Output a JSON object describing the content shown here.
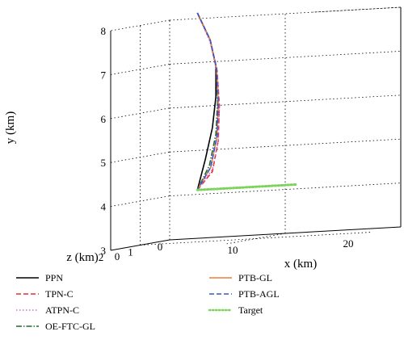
{
  "chart_data": {
    "type": "line",
    "title": "",
    "projection": "3d",
    "grid": "on",
    "xlabel": "x (km)",
    "ylabel": "y (km)",
    "zlabel": "z (km)",
    "xlim": [
      0,
      20
    ],
    "ylim": [
      3,
      8
    ],
    "zlim": [
      0,
      2
    ],
    "xticks": [
      "0",
      "10",
      "20"
    ],
    "yticks": [
      "3",
      "4",
      "5",
      "6",
      "7",
      "8"
    ],
    "zticks": [
      "0",
      "1",
      "2"
    ],
    "legend_placement": "bottom",
    "series": [
      {
        "name": "PPN",
        "color": "#000000",
        "dash": "solid",
        "x": [
          2.4,
          3.5,
          4.0,
          4.0,
          3.7,
          3.1,
          2.4
        ],
        "y": [
          8.13,
          7.5,
          6.9,
          6.2,
          5.5,
          4.8,
          4.1
        ],
        "z": [
          0,
          0,
          0,
          0,
          0,
          0,
          0
        ]
      },
      {
        "name": "TPN-C",
        "color": "#e0302e",
        "dash": "dashed",
        "x": [
          2.4,
          3.5,
          4.1,
          4.3,
          4.2,
          3.7,
          2.4
        ],
        "y": [
          8.13,
          7.5,
          6.8,
          6.0,
          5.2,
          4.5,
          4.1
        ],
        "z": [
          0,
          0,
          0,
          0,
          0,
          0,
          0
        ]
      },
      {
        "name": "ATPN-C",
        "color": "#d26ed2",
        "dash": "dotted",
        "x": [
          2.4,
          3.5,
          4.1,
          4.3,
          4.2,
          3.7,
          2.4
        ],
        "y": [
          8.13,
          7.45,
          6.75,
          5.95,
          5.2,
          4.55,
          4.1
        ],
        "z": [
          0,
          0,
          0,
          0,
          0,
          0,
          0
        ]
      },
      {
        "name": "OE-FTC-GL",
        "color": "#1c6b2e",
        "dash": "dashdot",
        "x": [
          2.4,
          3.5,
          4.05,
          4.15,
          4.0,
          3.45,
          2.4
        ],
        "y": [
          8.13,
          7.5,
          6.85,
          6.1,
          5.35,
          4.65,
          4.1
        ],
        "z": [
          0,
          0,
          0,
          0,
          0,
          0,
          0
        ]
      },
      {
        "name": "PTB-GL",
        "color": "#ef7b3c",
        "dash": "solid",
        "x": [
          2.4,
          3.5,
          4.05,
          4.2,
          4.1,
          3.55,
          2.4
        ],
        "y": [
          8.13,
          7.5,
          6.85,
          6.05,
          5.3,
          4.6,
          4.1
        ],
        "z": [
          0,
          0,
          0,
          0,
          0,
          0,
          0
        ]
      },
      {
        "name": "PTB-AGL",
        "color": "#3a55c9",
        "dash": "dashed",
        "x": [
          2.4,
          3.5,
          4.05,
          4.2,
          4.1,
          3.55,
          2.4
        ],
        "y": [
          8.13,
          7.5,
          6.85,
          6.05,
          5.3,
          4.6,
          4.1
        ],
        "z": [
          0,
          0,
          0,
          0,
          0,
          0,
          0
        ]
      },
      {
        "name": "Target",
        "color": "#7bd35a",
        "dash": "dotted",
        "x": [
          2.4,
          4.0,
          6.0,
          8.0,
          10.0,
          11.0
        ],
        "y": [
          4.1,
          4.1,
          4.1,
          4.1,
          4.1,
          4.1
        ],
        "z": [
          0,
          0,
          0,
          0,
          0,
          0
        ]
      }
    ]
  }
}
